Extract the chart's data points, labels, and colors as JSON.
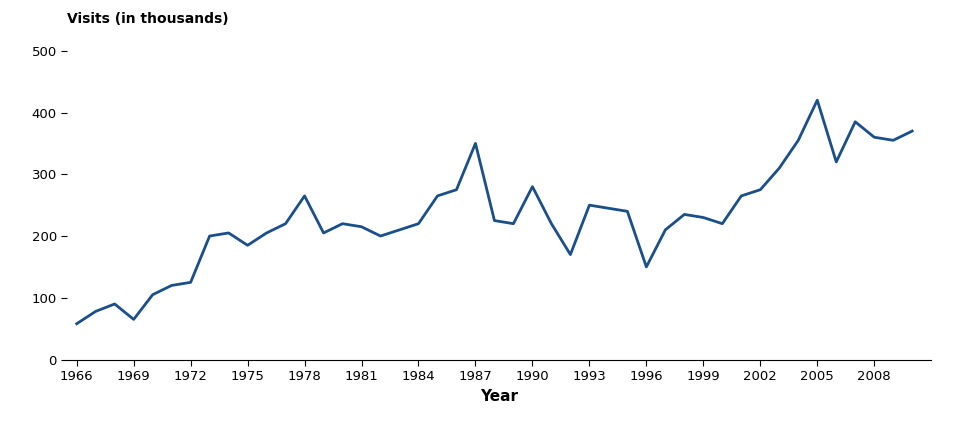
{
  "years": [
    1966,
    1967,
    1968,
    1969,
    1970,
    1971,
    1972,
    1973,
    1974,
    1975,
    1976,
    1977,
    1978,
    1979,
    1980,
    1981,
    1982,
    1983,
    1984,
    1985,
    1986,
    1987,
    1988,
    1989,
    1990,
    1991,
    1992,
    1993,
    1994,
    1995,
    1996,
    1997,
    1998,
    1999,
    2000,
    2001,
    2002,
    2003,
    2004,
    2005,
    2006,
    2007,
    2008,
    2009,
    2010
  ],
  "values": [
    58,
    78,
    90,
    65,
    105,
    120,
    125,
    200,
    205,
    185,
    205,
    220,
    265,
    205,
    220,
    215,
    200,
    210,
    220,
    265,
    275,
    350,
    225,
    220,
    280,
    220,
    170,
    250,
    245,
    240,
    150,
    210,
    235,
    230,
    220,
    265,
    275,
    310,
    355,
    420,
    320,
    385,
    360,
    355,
    370
  ],
  "line_color": "#1b4f8a",
  "line_width": 2.0,
  "ylabel": "Visits (in thousands)",
  "xlabel": "Year",
  "ylim": [
    0,
    500
  ],
  "yticks": [
    0,
    100,
    200,
    300,
    400,
    500
  ],
  "xticks": [
    1966,
    1969,
    1972,
    1975,
    1978,
    1981,
    1984,
    1987,
    1990,
    1993,
    1996,
    1999,
    2002,
    2005,
    2008
  ],
  "xlim": [
    1965.5,
    2011
  ],
  "background_color": "#ffffff",
  "ylabel_fontsize": 10,
  "xlabel_fontsize": 11,
  "tick_fontsize": 9.5
}
